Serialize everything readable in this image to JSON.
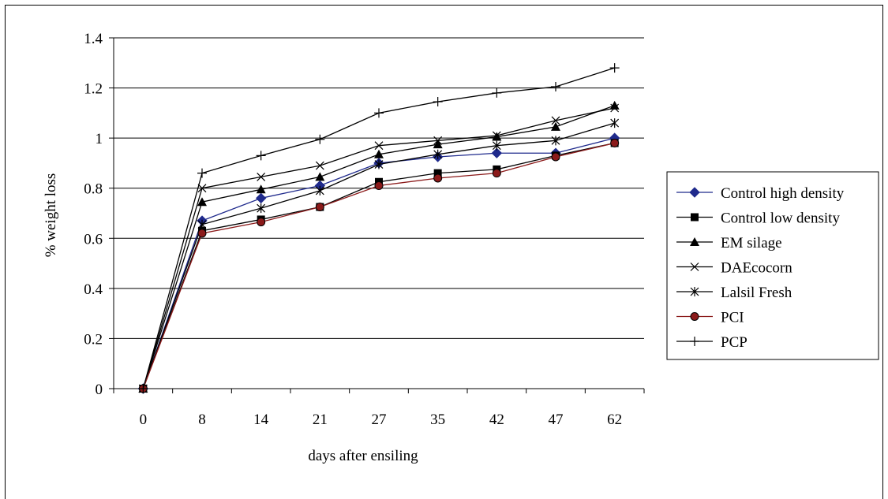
{
  "chart_data": {
    "type": "line",
    "title": "",
    "xlabel": "days after ensiling",
    "ylabel": "% weight loss",
    "categories": [
      "0",
      "8",
      "14",
      "21",
      "27",
      "35",
      "42",
      "47",
      "62"
    ],
    "ylim": [
      0,
      1.4
    ],
    "yticks": [
      "0",
      "0.2",
      "0.4",
      "0.6",
      "0.8",
      "1",
      "1.2",
      "1.4"
    ],
    "grid": "horizontal major gridlines",
    "legend_position": "right",
    "series": [
      {
        "name": "Control high density",
        "marker": "diamond",
        "color": "#1f2a8c",
        "values": [
          0,
          0.67,
          0.76,
          0.81,
          0.9,
          0.925,
          0.94,
          0.94,
          1.0
        ]
      },
      {
        "name": "Control low density",
        "marker": "square",
        "color": "#000000",
        "values": [
          0,
          0.63,
          0.675,
          0.725,
          0.825,
          0.86,
          0.875,
          0.93,
          0.98
        ]
      },
      {
        "name": "EM silage",
        "marker": "triangle",
        "color": "#000000",
        "values": [
          0,
          0.745,
          0.795,
          0.845,
          0.935,
          0.975,
          1.005,
          1.045,
          1.13
        ]
      },
      {
        "name": "DAEcocorn",
        "marker": "x",
        "color": "#000000",
        "values": [
          0,
          0.8,
          0.845,
          0.89,
          0.97,
          0.99,
          1.01,
          1.07,
          1.12
        ]
      },
      {
        "name": "Lalsil Fresh",
        "marker": "star",
        "color": "#000000",
        "values": [
          0,
          0.655,
          0.72,
          0.79,
          0.895,
          0.935,
          0.97,
          0.99,
          1.06
        ]
      },
      {
        "name": "PCI",
        "marker": "circle",
        "color": "#8b1a1a",
        "values": [
          0,
          0.62,
          0.665,
          0.725,
          0.81,
          0.84,
          0.86,
          0.925,
          0.98
        ]
      },
      {
        "name": "PCP",
        "marker": "plus",
        "color": "#000000",
        "values": [
          0,
          0.86,
          0.93,
          0.995,
          1.1,
          1.145,
          1.18,
          1.205,
          1.28
        ]
      }
    ]
  }
}
